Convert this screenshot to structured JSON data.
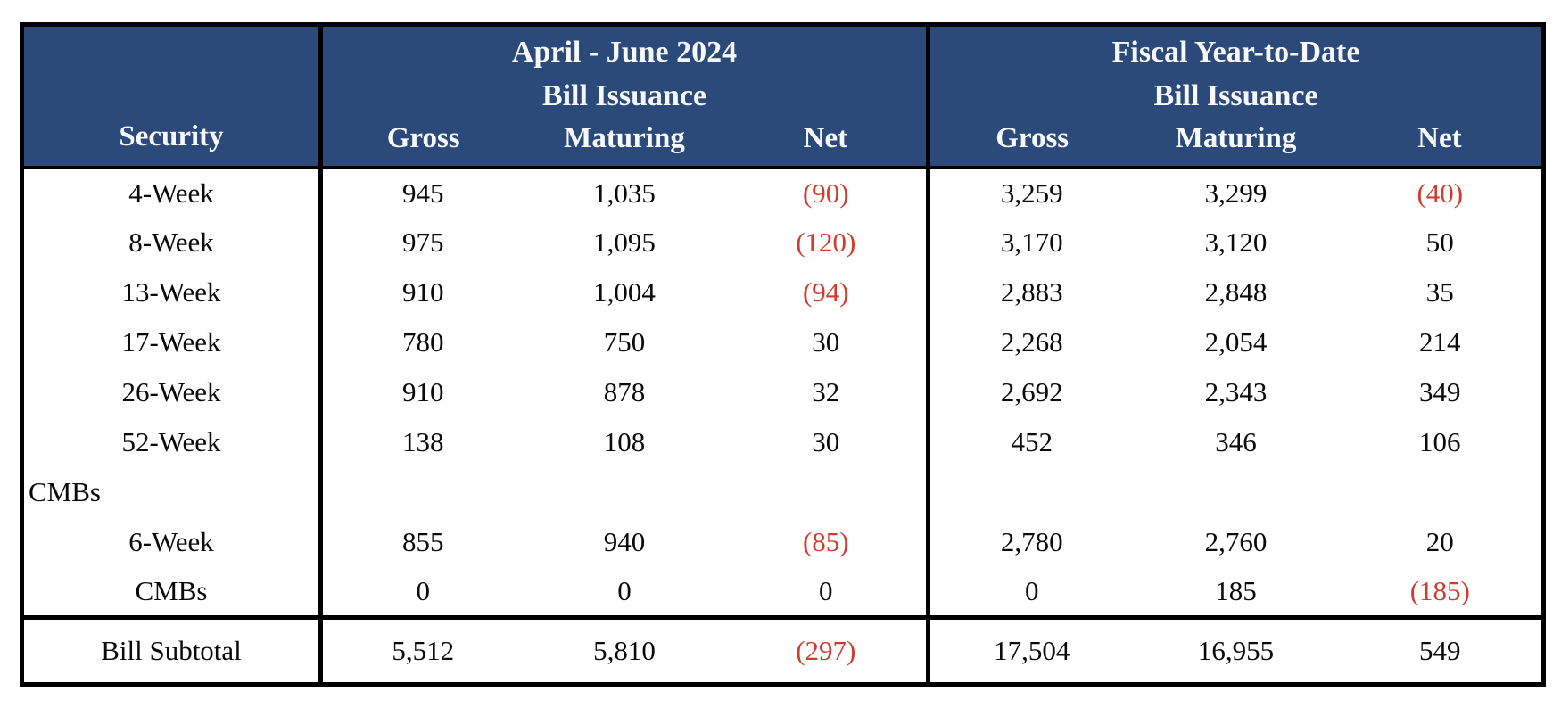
{
  "colors": {
    "header_bg": "#2b4a7a",
    "negative_red": "#d23b2b",
    "header_text": "#f6f8fb",
    "body_text": "#0a0a0a",
    "border": "#000000"
  },
  "table": {
    "security_header": "Security",
    "groups": [
      {
        "title_line1": "April - June 2024",
        "title_line2": "Bill Issuance",
        "columns": [
          "Gross",
          "Maturing",
          "Net"
        ]
      },
      {
        "title_line1": "Fiscal Year-to-Date",
        "title_line2": "Bill Issuance",
        "columns": [
          "Gross",
          "Maturing",
          "Net"
        ]
      }
    ],
    "rows": [
      {
        "label": "4-Week",
        "values": [
          "945",
          "1,035",
          "(90)",
          "3,259",
          "3,299",
          "(40)"
        ]
      },
      {
        "label": "8-Week",
        "values": [
          "975",
          "1,095",
          "(120)",
          "3,170",
          "3,120",
          "50"
        ]
      },
      {
        "label": "13-Week",
        "values": [
          "910",
          "1,004",
          "(94)",
          "2,883",
          "2,848",
          "35"
        ]
      },
      {
        "label": "17-Week",
        "values": [
          "780",
          "750",
          "30",
          "2,268",
          "2,054",
          "214"
        ]
      },
      {
        "label": "26-Week",
        "values": [
          "910",
          "878",
          "32",
          "2,692",
          "2,343",
          "349"
        ]
      },
      {
        "label": "52-Week",
        "values": [
          "138",
          "108",
          "30",
          "452",
          "346",
          "106"
        ]
      },
      {
        "label": "CMBs",
        "values": [
          "",
          "",
          "",
          "",
          "",
          ""
        ]
      },
      {
        "label": "6-Week",
        "values": [
          "855",
          "940",
          "(85)",
          "2,780",
          "2,760",
          "20"
        ]
      },
      {
        "label": "CMBs",
        "values": [
          "0",
          "0",
          "0",
          "0",
          "185",
          "(185)"
        ]
      }
    ],
    "subtotal": {
      "label": "Bill Subtotal",
      "values": [
        "5,512",
        "5,810",
        "(297)",
        "17,504",
        "16,955",
        "549"
      ]
    }
  },
  "chart_data": {
    "type": "table",
    "title": "Bill Issuance",
    "column_groups": [
      "April - June 2024 Bill Issuance",
      "Fiscal Year-to-Date Bill Issuance"
    ],
    "columns": [
      "Security",
      "Gross (Apr-Jun)",
      "Maturing (Apr-Jun)",
      "Net (Apr-Jun)",
      "Gross (FYTD)",
      "Maturing (FYTD)",
      "Net (FYTD)"
    ],
    "rows": [
      [
        "4-Week",
        945,
        1035,
        -90,
        3259,
        3299,
        -40
      ],
      [
        "8-Week",
        975,
        1095,
        -120,
        3170,
        3120,
        50
      ],
      [
        "13-Week",
        910,
        1004,
        -94,
        2883,
        2848,
        35
      ],
      [
        "17-Week",
        780,
        750,
        30,
        2268,
        2054,
        214
      ],
      [
        "26-Week",
        910,
        878,
        32,
        2692,
        2343,
        349
      ],
      [
        "52-Week",
        138,
        108,
        30,
        452,
        346,
        106
      ],
      [
        "CMBs (section header)",
        null,
        null,
        null,
        null,
        null,
        null
      ],
      [
        "6-Week",
        855,
        940,
        -85,
        2780,
        2760,
        20
      ],
      [
        "CMBs",
        0,
        0,
        0,
        0,
        185,
        -185
      ],
      [
        "Bill Subtotal",
        5512,
        5810,
        -297,
        17504,
        16955,
        549
      ]
    ],
    "notes": "Negative values shown in red parentheses"
  }
}
